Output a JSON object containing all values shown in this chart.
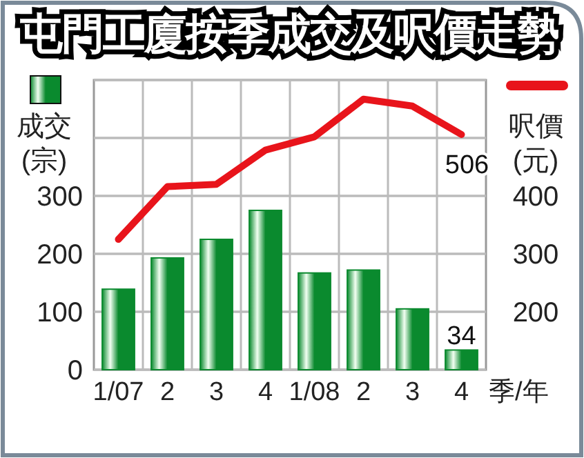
{
  "chart_data": {
    "type": "bar",
    "title": "屯門工廈按季成交及呎價走勢",
    "xlabel": "季/年",
    "ylabel": "成交(宗)",
    "y2label": "呎價(元)",
    "categories": [
      "1/07",
      "2",
      "3",
      "4",
      "1/08",
      "2",
      "3",
      "4"
    ],
    "series": [
      {
        "color": "#0a8a2e",
        "values": [
          139,
          193,
          225,
          275,
          167,
          172,
          105,
          34
        ],
        "value_labels": [
          null,
          null,
          null,
          null,
          null,
          null,
          null,
          "34"
        ]
      },
      {
        "type": "line",
        "axis": "y2",
        "color": "#e8141b",
        "values": [
          325,
          416,
          420,
          479,
          502,
          567,
          555,
          506
        ],
        "value_labels": [
          null,
          null,
          null,
          null,
          null,
          null,
          null,
          "506"
        ]
      }
    ],
    "ylim": [
      0,
      500
    ],
    "yticks": [
      0,
      100,
      200,
      300,
      {
        "value": 400,
        "label": null
      },
      {
        "value": 500,
        "label": null
      }
    ],
    "y2lim": [
      100,
      600
    ],
    "y2ticks": [
      {
        "value": 100,
        "label": null
      },
      200,
      300,
      400,
      {
        "value": 500,
        "label": null
      },
      {
        "value": 600,
        "label": null
      }
    ],
    "grid": true,
    "marker": "none",
    "line_style": "solid"
  }
}
